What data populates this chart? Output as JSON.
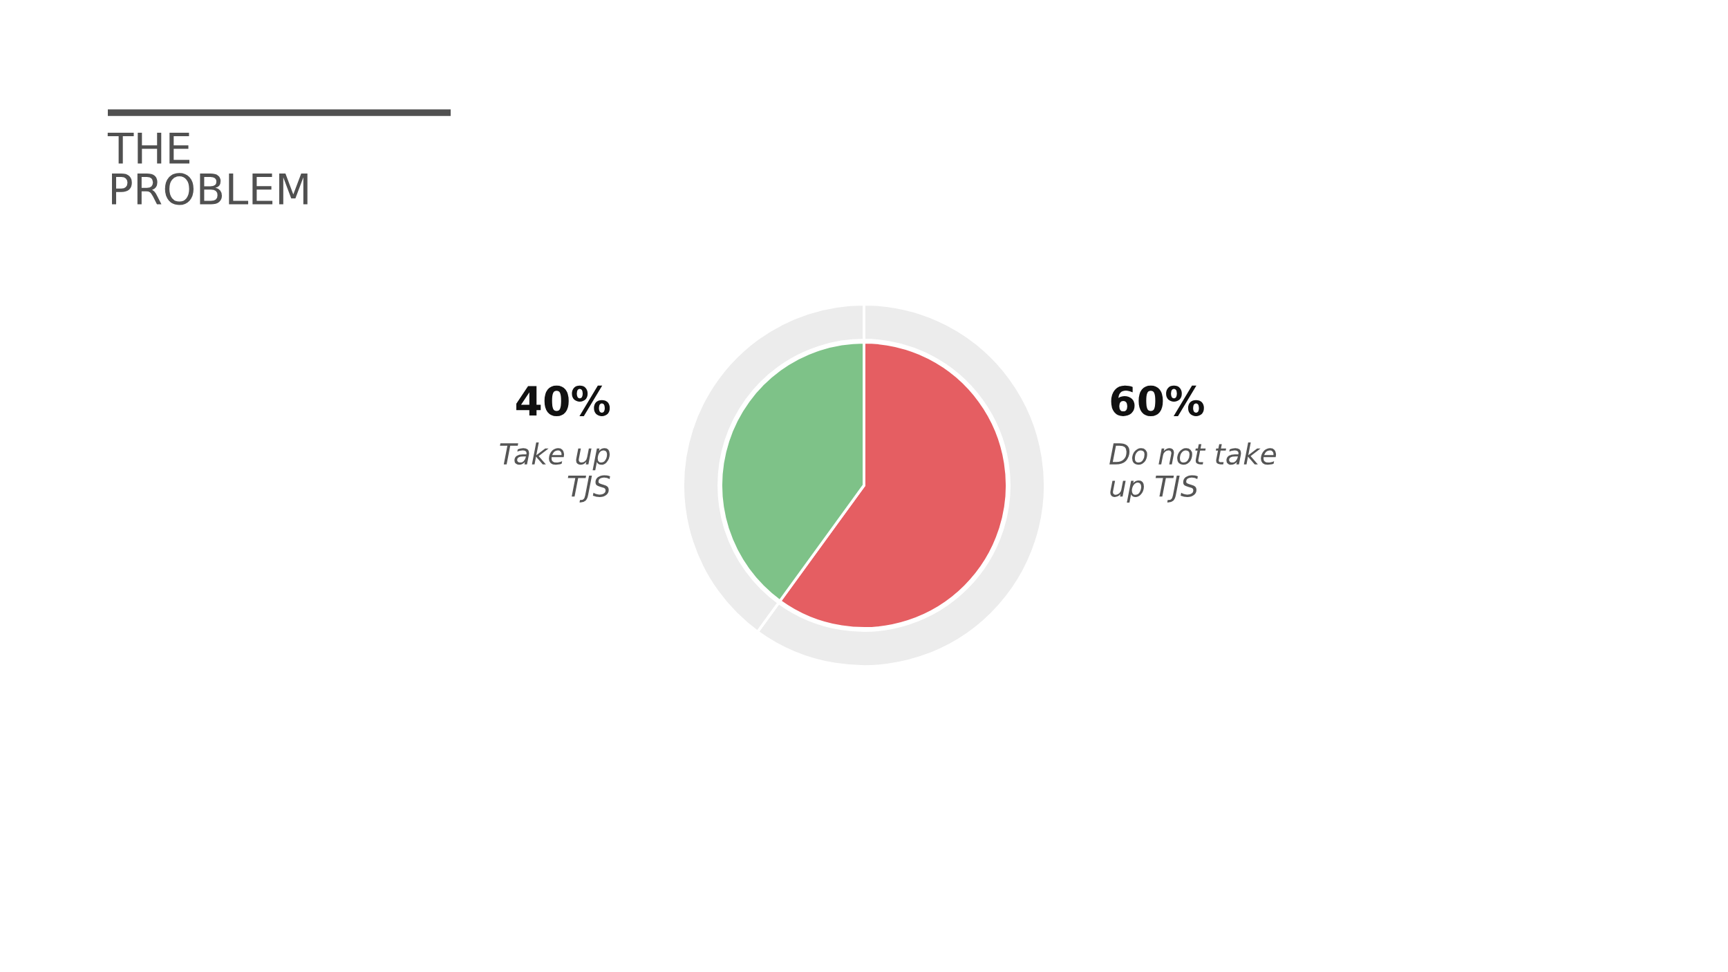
{
  "chart_data": {
    "type": "pie",
    "title": "THE\nPROBLEM",
    "categories": [
      "Do not take\nup TJS",
      "Take up\nTJS"
    ],
    "series": [
      {
        "values": [
          60,
          40
        ],
        "colors": [
          "#e55e62",
          "#7ec288"
        ]
      },
      {
        "type": "donut",
        "values": [
          60,
          40
        ],
        "colors": [
          "#ececec",
          "#ececec"
        ]
      }
    ],
    "value_labels": [
      "60%",
      "40%"
    ]
  }
}
